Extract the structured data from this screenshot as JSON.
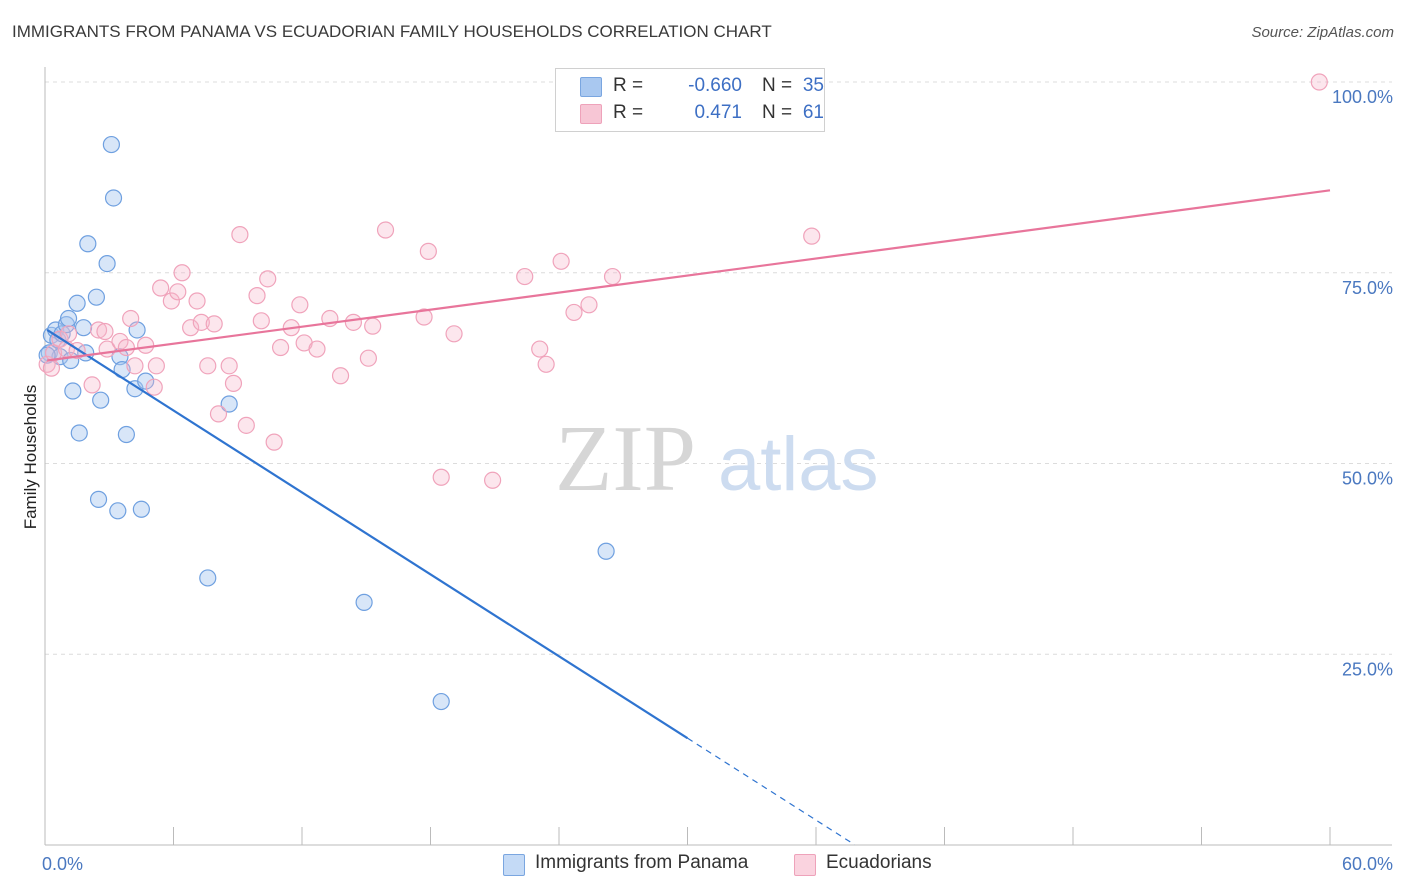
{
  "header": {
    "title": "IMMIGRANTS FROM PANAMA VS ECUADORIAN FAMILY HOUSEHOLDS CORRELATION CHART",
    "source": "Source: ZipAtlas.com"
  },
  "watermark": {
    "zip": "ZIP",
    "atlas": "atlas"
  },
  "legend": {
    "rows": [
      {
        "r_label": "R =",
        "r_value": "-0.660",
        "n_label": "N =",
        "n_value": "35",
        "color": "#a9c8f0"
      },
      {
        "r_label": "R =",
        "r_value": "0.471",
        "n_label": "N =",
        "n_value": "61",
        "color": "#f7b8cb"
      }
    ]
  },
  "bottom_legend": [
    {
      "label": "Immigrants from Panama",
      "color": "#a9c8f0"
    },
    {
      "label": "Ecuadorians",
      "color": "#f7b8cb"
    }
  ],
  "chart_data": {
    "type": "scatter",
    "title": "IMMIGRANTS FROM PANAMA VS ECUADORIAN FAMILY HOUSEHOLDS CORRELATION CHART",
    "xlabel": "",
    "ylabel": "Family Households",
    "xlim": [
      0,
      60
    ],
    "ylim": [
      0,
      102
    ],
    "x_tick_labels": [
      {
        "value": 0,
        "label": "0.0%"
      },
      {
        "value": 60,
        "label": "60.0%"
      }
    ],
    "y_tick_labels": [
      {
        "value": 25,
        "label": "25.0%"
      },
      {
        "value": 50,
        "label": "50.0%"
      },
      {
        "value": 75,
        "label": "75.0%"
      },
      {
        "value": 100,
        "label": "100.0%"
      }
    ],
    "grid": true,
    "legend_position": "top-center",
    "series": [
      {
        "name": "Immigrants from Panama",
        "color": "#6fa0e0",
        "line_color": "#2f74d0",
        "points": [
          [
            0.2,
            64.5
          ],
          [
            0.3,
            66.8
          ],
          [
            0.5,
            67.5
          ],
          [
            0.6,
            66.2
          ],
          [
            0.7,
            64.0
          ],
          [
            0.8,
            67.0
          ],
          [
            1.0,
            68.2
          ],
          [
            1.1,
            69.0
          ],
          [
            1.2,
            63.5
          ],
          [
            1.3,
            59.5
          ],
          [
            1.5,
            71.0
          ],
          [
            1.6,
            54.0
          ],
          [
            1.8,
            67.8
          ],
          [
            1.9,
            64.5
          ],
          [
            2.0,
            78.8
          ],
          [
            2.4,
            71.8
          ],
          [
            2.5,
            45.3
          ],
          [
            2.6,
            58.3
          ],
          [
            2.9,
            76.2
          ],
          [
            3.1,
            91.8
          ],
          [
            3.2,
            84.8
          ],
          [
            3.4,
            43.8
          ],
          [
            3.5,
            64.0
          ],
          [
            3.6,
            62.3
          ],
          [
            3.8,
            53.8
          ],
          [
            4.2,
            59.8
          ],
          [
            4.3,
            67.5
          ],
          [
            4.5,
            44.0
          ],
          [
            4.7,
            60.8
          ],
          [
            7.6,
            35.0
          ],
          [
            8.6,
            57.8
          ],
          [
            14.9,
            31.8
          ],
          [
            18.5,
            18.8
          ],
          [
            26.2,
            38.5
          ],
          [
            0.1,
            64.2
          ]
        ],
        "trend": {
          "x0": 0.1,
          "y0": 67.5,
          "x1": 30.0,
          "y1": 14.0,
          "dash_to_x": 37.8
        }
      },
      {
        "name": "Ecuadorians",
        "color": "#f4a3bb",
        "line_color": "#e8759b",
        "points": [
          [
            0.1,
            63.0
          ],
          [
            0.4,
            64.5
          ],
          [
            0.7,
            66.3
          ],
          [
            1.0,
            65.0
          ],
          [
            1.1,
            67.0
          ],
          [
            2.2,
            60.3
          ],
          [
            2.5,
            67.5
          ],
          [
            2.8,
            67.3
          ],
          [
            2.9,
            65.0
          ],
          [
            3.5,
            66.0
          ],
          [
            3.8,
            65.2
          ],
          [
            4.0,
            69.0
          ],
          [
            4.2,
            62.8
          ],
          [
            4.7,
            65.5
          ],
          [
            5.1,
            60.0
          ],
          [
            5.2,
            62.8
          ],
          [
            5.4,
            73.0
          ],
          [
            5.9,
            71.3
          ],
          [
            6.2,
            72.5
          ],
          [
            6.4,
            75.0
          ],
          [
            6.8,
            67.8
          ],
          [
            7.1,
            71.3
          ],
          [
            7.3,
            68.5
          ],
          [
            7.6,
            62.8
          ],
          [
            7.9,
            68.3
          ],
          [
            8.1,
            56.5
          ],
          [
            8.6,
            62.8
          ],
          [
            8.8,
            60.5
          ],
          [
            9.1,
            80.0
          ],
          [
            9.4,
            55.0
          ],
          [
            9.9,
            72.0
          ],
          [
            10.1,
            68.7
          ],
          [
            10.4,
            74.2
          ],
          [
            10.7,
            52.8
          ],
          [
            11.0,
            65.2
          ],
          [
            11.5,
            67.8
          ],
          [
            11.9,
            70.8
          ],
          [
            12.1,
            65.8
          ],
          [
            12.7,
            65.0
          ],
          [
            13.3,
            69.0
          ],
          [
            13.8,
            61.5
          ],
          [
            14.4,
            68.5
          ],
          [
            15.1,
            63.8
          ],
          [
            15.3,
            68.0
          ],
          [
            15.9,
            80.6
          ],
          [
            17.7,
            69.2
          ],
          [
            17.9,
            77.8
          ],
          [
            18.5,
            48.2
          ],
          [
            19.1,
            67.0
          ],
          [
            20.9,
            47.8
          ],
          [
            22.4,
            74.5
          ],
          [
            23.1,
            65.0
          ],
          [
            23.4,
            63.0
          ],
          [
            24.1,
            76.5
          ],
          [
            24.7,
            69.8
          ],
          [
            25.4,
            70.8
          ],
          [
            26.5,
            74.5
          ],
          [
            35.8,
            79.8
          ],
          [
            59.5,
            100.0
          ],
          [
            1.5,
            64.8
          ],
          [
            0.3,
            62.5
          ]
        ],
        "trend": {
          "x0": 0.1,
          "y0": 63.5,
          "x1": 60.0,
          "y1": 85.8
        }
      }
    ]
  }
}
